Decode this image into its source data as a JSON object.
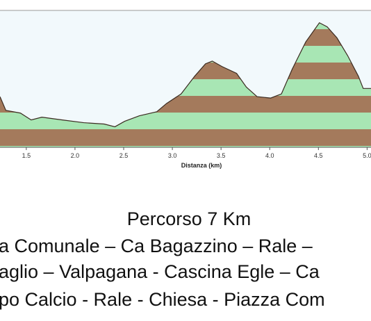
{
  "chart_data": {
    "type": "area",
    "x_label": "Distanza (km)",
    "x": [
      1.23,
      1.29,
      1.44,
      1.55,
      1.66,
      1.87,
      2.09,
      2.3,
      2.41,
      2.51,
      2.66,
      2.84,
      2.94,
      3.09,
      3.23,
      3.34,
      3.41,
      3.51,
      3.66,
      3.76,
      3.87,
      4.01,
      4.12,
      4.23,
      4.37,
      4.51,
      4.59,
      4.69,
      4.8,
      4.91,
      4.96,
      5.04
    ],
    "values": [
      37,
      27,
      25,
      20,
      22,
      20,
      18,
      17,
      15,
      19,
      23,
      26,
      32,
      39,
      52,
      61,
      63,
      59,
      54,
      44,
      37,
      36,
      39,
      57,
      77,
      91,
      88,
      80,
      67,
      52,
      43,
      43
    ],
    "xlim": [
      1.23,
      5.04
    ],
    "ylim": [
      0,
      100
    ],
    "xticks": [
      1.5,
      {
        "value": 2,
        "label": "2.0"
      },
      2.5,
      {
        "value": 3,
        "label": "3.0"
      },
      3.5,
      {
        "value": 4,
        "label": "4.0"
      },
      4.5,
      {
        "value": 5,
        "label": "5.0"
      }
    ]
  },
  "caption": {
    "title": "Percorso 7 Km",
    "lines": [
      "a Comunale – Ca Bagazzino – Rale – ",
      "aglio – Valpagana - Cascina Egle – Ca",
      "po Calcio - Rale - Chiesa - Piazza Com"
    ]
  }
}
